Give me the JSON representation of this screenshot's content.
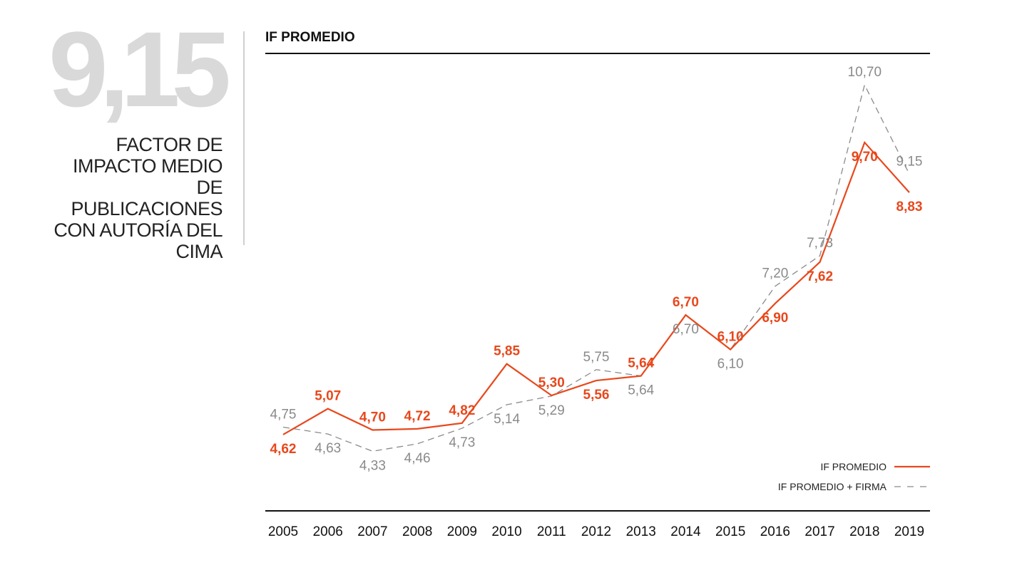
{
  "headline": {
    "value": "9,15",
    "caption": "FACTOR DE IMPACTO MEDIO DE PUBLICACIONES CON AUTORÍA DEL CIMA"
  },
  "chart_data": {
    "type": "line",
    "title": "IF PROMEDIO",
    "x": [
      "2005",
      "2006",
      "2007",
      "2008",
      "2009",
      "2010",
      "2011",
      "2012",
      "2013",
      "2014",
      "2015",
      "2016",
      "2017",
      "2018",
      "2019"
    ],
    "ylim": [
      4,
      11
    ],
    "grid": false,
    "legend": "bottom-right",
    "series": [
      {
        "name": "IF PROMEDIO",
        "color": "#e8481c",
        "style": "solid",
        "values": [
          4.62,
          5.07,
          4.7,
          4.72,
          4.82,
          5.85,
          5.3,
          5.56,
          5.64,
          6.7,
          6.1,
          6.9,
          7.62,
          9.7,
          8.83
        ]
      },
      {
        "name": "IF PROMEDIO + FIRMA",
        "color": "#8a8a8a",
        "style": "dashed",
        "values": [
          4.75,
          4.63,
          4.33,
          4.46,
          4.73,
          5.14,
          5.29,
          5.75,
          5.64,
          6.7,
          6.1,
          7.2,
          7.73,
          10.7,
          9.15
        ]
      }
    ]
  }
}
